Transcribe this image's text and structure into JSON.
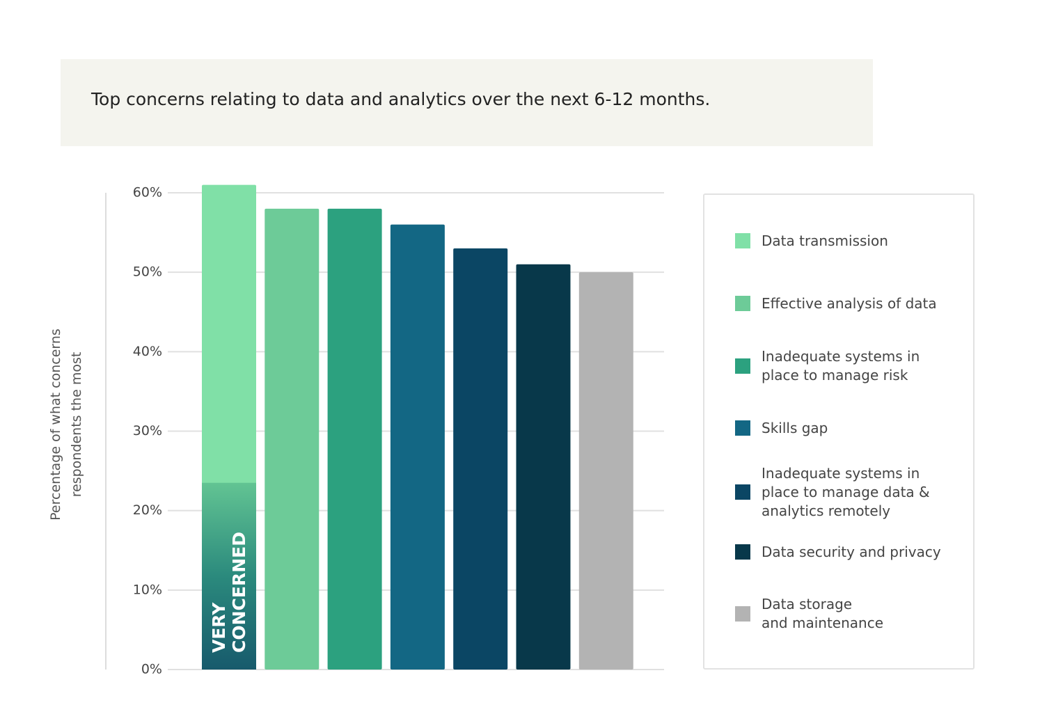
{
  "chart_data": {
    "type": "bar",
    "title": "Top concerns relating to data and analytics over the next 6-12 months.",
    "y_label": "Percentage of what concerns respondents the most",
    "ylim": [
      0,
      60
    ],
    "yticks": [
      {
        "value": 0,
        "label": "0%"
      },
      {
        "value": 10,
        "label": "10%"
      },
      {
        "value": 20,
        "label": "20%"
      },
      {
        "value": 30,
        "label": "30%"
      },
      {
        "value": 40,
        "label": "40%"
      },
      {
        "value": 50,
        "label": "50%"
      },
      {
        "value": 60,
        "label": "60%"
      }
    ],
    "grid": true,
    "series": [
      {
        "name": "Data transmission",
        "color": "#80e0a7",
        "values": [
          61
        ],
        "very_concerned": {
          "label": "VERY CONCERNED",
          "value": 23.5
        }
      },
      {
        "name": "Effective analysis of data",
        "color": "#6dcb98",
        "values": [
          58
        ]
      },
      {
        "name": "Inadequate systems in\nplace to manage risk",
        "color": "#2ca17f",
        "values": [
          58
        ]
      },
      {
        "name": "Skills gap",
        "color": "#136784",
        "values": [
          56
        ]
      },
      {
        "name": "Inadequate systems in\nplace to manage data &\nanalytics remotely",
        "color": "#0b4664",
        "values": [
          53
        ]
      },
      {
        "name": "Data security and privacy",
        "color": "#08384a",
        "values": [
          51
        ]
      },
      {
        "name": "Data storage\nand maintenance",
        "color": "#b3b3b3",
        "values": [
          50
        ]
      }
    ]
  }
}
